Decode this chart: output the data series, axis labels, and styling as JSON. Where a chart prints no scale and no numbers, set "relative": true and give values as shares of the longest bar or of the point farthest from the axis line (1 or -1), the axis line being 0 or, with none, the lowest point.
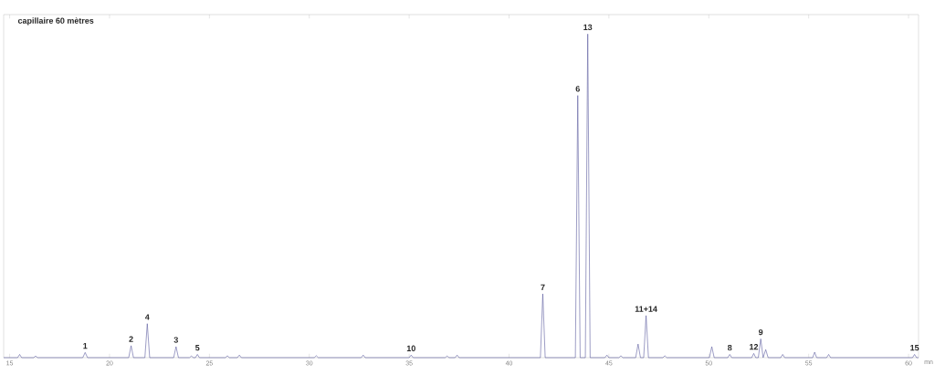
{
  "chart_data": {
    "type": "line",
    "title": "capillaire 60 mètres",
    "xlabel": "mn",
    "relative": true,
    "xlim": [
      14.7,
      60.5
    ],
    "xticks": [
      15,
      20,
      25,
      30,
      35,
      40,
      45,
      50,
      55,
      60
    ],
    "grid": false,
    "marker": "none",
    "line_style": "solid",
    "series": [
      {
        "color": "#5b5b9e",
        "x": [
          14.7,
          15.4,
          15.5,
          15.6,
          16.2,
          16.3,
          16.4,
          18.66,
          18.78,
          18.9,
          20.96,
          21.08,
          21.2,
          21.77,
          21.89,
          22.01,
          23.21,
          23.33,
          23.45,
          24.0,
          24.1,
          24.2,
          24.3,
          24.4,
          24.5,
          25.8,
          25.9,
          26.0,
          26.4,
          26.5,
          26.6,
          30.25,
          30.35,
          30.45,
          32.6,
          32.7,
          32.8,
          35.0,
          35.1,
          35.2,
          36.8,
          36.9,
          37.0,
          37.3,
          37.4,
          37.5,
          41.57,
          41.69,
          41.81,
          43.32,
          43.44,
          43.56,
          43.82,
          43.94,
          44.06,
          44.8,
          44.9,
          45.0,
          45.5,
          45.6,
          45.7,
          46.34,
          46.46,
          46.58,
          46.74,
          46.86,
          46.98,
          47.7,
          47.8,
          47.9,
          50.03,
          50.15,
          50.27,
          50.95,
          51.05,
          51.15,
          52.15,
          52.25,
          52.35,
          52.48,
          52.6,
          52.72,
          52.85,
          52.97,
          53.6,
          53.7,
          53.8,
          55.2,
          55.3,
          55.4,
          55.9,
          56.0,
          56.1,
          60.2,
          60.3,
          60.4,
          60.5
        ],
        "values": [
          0,
          0,
          0.01,
          0,
          0,
          0.005,
          0,
          0,
          0.016,
          0,
          0,
          0.037,
          0,
          0,
          0.105,
          0,
          0,
          0.034,
          0,
          0,
          0.005,
          0,
          0,
          0.01,
          0,
          0,
          0.006,
          0,
          0,
          0.008,
          0,
          0,
          0.006,
          0,
          0,
          0.008,
          0,
          0,
          0.008,
          0,
          0,
          0.005,
          0,
          0,
          0.008,
          0,
          0,
          0.197,
          0,
          0,
          0.81,
          0,
          0,
          1,
          0,
          0,
          0.008,
          0,
          0,
          0.006,
          0,
          0,
          0.042,
          0,
          0,
          0.13,
          0,
          0,
          0.006,
          0,
          0,
          0.034,
          0,
          0,
          0.01,
          0,
          0,
          0.013,
          0,
          0,
          0.058,
          0,
          0.025,
          0,
          0,
          0.01,
          0,
          0,
          0.017,
          0,
          0,
          0.01,
          0,
          0,
          0.01,
          0,
          0
        ]
      }
    ],
    "annotations": [
      {
        "text": "1",
        "x": 18.78,
        "y": 0.016
      },
      {
        "text": "2",
        "x": 21.08,
        "y": 0.037
      },
      {
        "text": "4",
        "x": 21.89,
        "y": 0.105
      },
      {
        "text": "3",
        "x": 23.33,
        "y": 0.034
      },
      {
        "text": "5",
        "x": 24.4,
        "y": 0.01
      },
      {
        "text": "10",
        "x": 35.1,
        "y": 0.008
      },
      {
        "text": "7",
        "x": 41.69,
        "y": 0.197
      },
      {
        "text": "6",
        "x": 43.44,
        "y": 0.81
      },
      {
        "text": "13",
        "x": 43.94,
        "y": 1
      },
      {
        "text": "11+14",
        "x": 46.86,
        "y": 0.13
      },
      {
        "text": "8",
        "x": 51.05,
        "y": 0.01
      },
      {
        "text": "12",
        "x": 52.25,
        "y": 0.013
      },
      {
        "text": "9",
        "x": 52.6,
        "y": 0.058
      },
      {
        "text": "15",
        "x": 60.3,
        "y": 0.01
      }
    ]
  }
}
